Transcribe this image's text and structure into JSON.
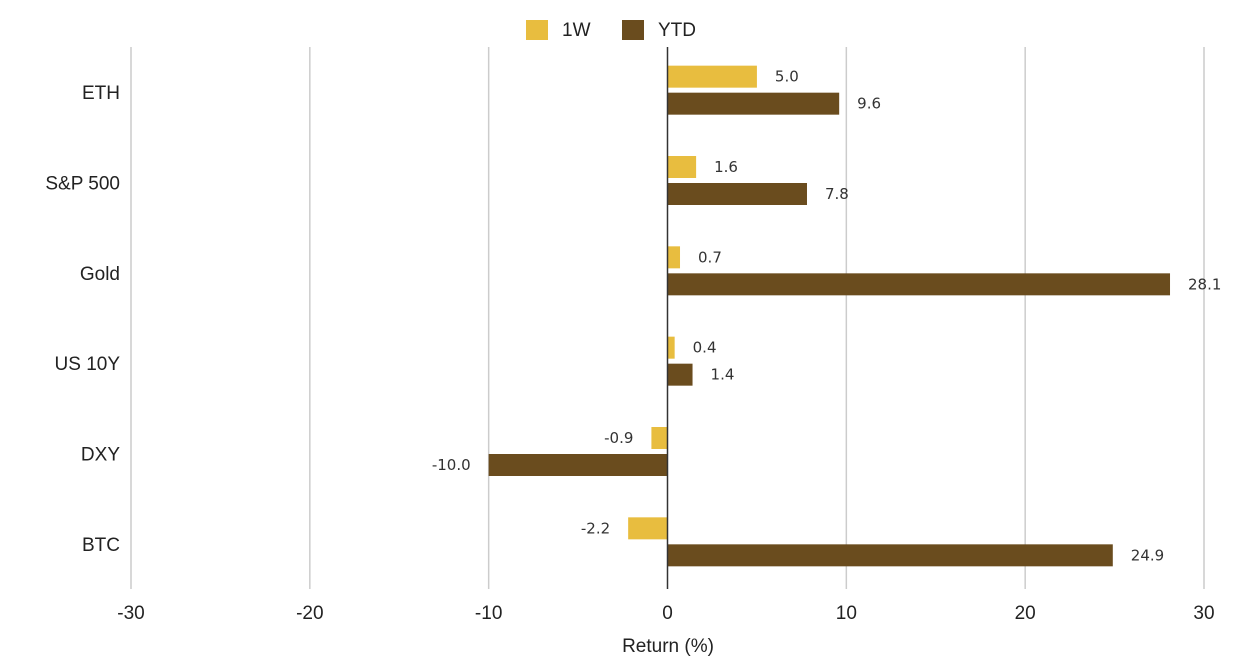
{
  "chart_data": {
    "type": "bar",
    "orientation": "horizontal",
    "categories": [
      "ETH",
      "S&P 500",
      "Gold",
      "US 10Y",
      "DXY",
      "BTC"
    ],
    "series": [
      {
        "name": "1W",
        "color": "#e8bd3f",
        "values": [
          5.0,
          1.6,
          0.7,
          0.4,
          -0.9,
          -2.2
        ]
      },
      {
        "name": "YTD",
        "color": "#6a4c1e",
        "values": [
          9.6,
          7.8,
          28.1,
          1.4,
          -10.0,
          24.9
        ]
      }
    ],
    "xlabel": "Return (%)",
    "xlim": [
      -30,
      30
    ],
    "xticks": [
      -30,
      -20,
      -10,
      0,
      10,
      20,
      30
    ],
    "grid": "vertical",
    "legend": "top-center"
  }
}
